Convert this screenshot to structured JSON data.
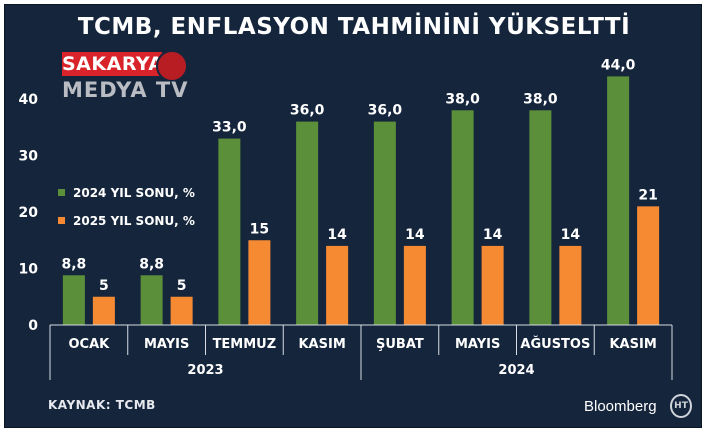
{
  "header": {
    "title": "TCMB, ENFLASYON TAHMİNİNİ YÜKSELTTİ"
  },
  "watermark": {
    "line1": "SAKARYA",
    "line2": "MEDYA TV"
  },
  "footer": {
    "source": "KAYNAK: TCMB",
    "brand": "Bloomberg",
    "brand_icon_text": "HT"
  },
  "colors": {
    "background": "#15253c",
    "series_2024": "#5b8f3a",
    "series_2025": "#f58a33",
    "text": "#ffffff"
  },
  "chart_data": {
    "type": "bar",
    "categories": [
      "OCAK",
      "MAYIS",
      "TEMMUZ",
      "KASIM",
      "ŞUBAT",
      "MAYIS",
      "AĞUSTOS",
      "KASIM"
    ],
    "groups": [
      {
        "label": "2023",
        "count": 4
      },
      {
        "label": "2024",
        "count": 4
      }
    ],
    "series": [
      {
        "name": "2024 YIL SONU, %",
        "color": "#5b8f3a",
        "values": [
          8.8,
          8.8,
          33.0,
          36.0,
          36.0,
          38.0,
          38.0,
          44.0
        ],
        "labels": [
          "8,8",
          "8,8",
          "33,0",
          "36,0",
          "36,0",
          "38,0",
          "38,0",
          "44,0"
        ]
      },
      {
        "name": "2025 YIL SONU, %",
        "color": "#f58a33",
        "values": [
          5,
          5,
          15,
          14,
          14,
          14,
          14,
          21
        ],
        "labels": [
          "5",
          "5",
          "15",
          "14",
          "14",
          "14",
          "14",
          "21"
        ]
      }
    ],
    "yticks": [
      0,
      10,
      20,
      30,
      40
    ],
    "ylim": [
      0,
      46
    ],
    "legend_position": "left",
    "grid": false
  }
}
